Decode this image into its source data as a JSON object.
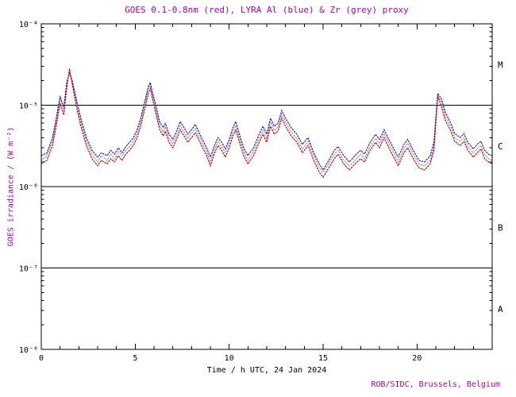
{
  "credit": "ROB/SIDC, Brussels, Belgium",
  "colors": {
    "accent_magenta": "#aa00aa",
    "axis_black": "#000000",
    "goes_red": "#cc0000",
    "lyra_al_blue": "#2020c0",
    "lyra_zr_grey": "#9a9a9a"
  },
  "chart_data": {
    "type": "line",
    "title": "GOES 0.1-0.8nm (red), LYRA Al (blue) & Zr (grey) proxy",
    "xlabel": "Time / h UTC, 24 Jan 2024",
    "ylabel": "GOES irradiance / (W m⁻²)",
    "xlim": [
      0,
      24
    ],
    "ylim_log10": [
      -8,
      -4
    ],
    "grid": false,
    "x_major_ticks": [
      0,
      5,
      10,
      15,
      20
    ],
    "y_ticks": [
      {
        "log10": -4,
        "label": "10⁻⁴"
      },
      {
        "log10": -5,
        "label": "10⁻⁵"
      },
      {
        "log10": -6,
        "label": "10⁻⁶"
      },
      {
        "log10": -7,
        "label": "10⁻⁷"
      },
      {
        "log10": -8,
        "label": "10⁻⁸"
      }
    ],
    "hlines_log10": [
      -5,
      -6,
      -7
    ],
    "flare_classes": [
      {
        "label": "M",
        "log10_center": -4.5
      },
      {
        "label": "C",
        "log10_center": -5.5
      },
      {
        "label": "B",
        "log10_center": -6.5
      },
      {
        "label": "A",
        "log10_center": -7.5
      }
    ],
    "x": [
      0,
      0.3,
      0.6,
      0.8,
      1.0,
      1.1,
      1.2,
      1.35,
      1.5,
      1.65,
      1.9,
      2.1,
      2.4,
      2.7,
      3.0,
      3.2,
      3.5,
      3.7,
      3.9,
      4.1,
      4.3,
      4.5,
      4.7,
      4.9,
      5.1,
      5.3,
      5.5,
      5.7,
      5.8,
      5.9,
      6.1,
      6.3,
      6.5,
      6.6,
      6.8,
      7.0,
      7.2,
      7.4,
      7.6,
      7.8,
      8.0,
      8.2,
      8.5,
      8.8,
      9.0,
      9.2,
      9.4,
      9.6,
      9.8,
      10.0,
      10.2,
      10.35,
      10.6,
      10.8,
      11.0,
      11.3,
      11.6,
      11.8,
      12.0,
      12.2,
      12.4,
      12.6,
      12.8,
      13.0,
      13.3,
      13.6,
      13.9,
      14.2,
      14.5,
      14.8,
      15.0,
      15.3,
      15.6,
      15.8,
      16.1,
      16.4,
      16.7,
      17.0,
      17.2,
      17.5,
      17.8,
      18.0,
      18.25,
      18.5,
      18.8,
      19.0,
      19.3,
      19.5,
      19.8,
      20.1,
      20.4,
      20.7,
      20.9,
      21.1,
      21.3,
      21.5,
      21.8,
      22.0,
      22.3,
      22.5,
      22.7,
      23.0,
      23.2,
      23.4,
      23.6,
      23.8,
      24.0
    ],
    "series": [
      {
        "id": "lyra-zr-proxy",
        "name": "LYRA Zr proxy (grey)",
        "color": "#9a9a9a",
        "values": [
          2.1e-06,
          2.4e-06,
          3.6e-06,
          6.3e-06,
          1.2e-05,
          1e-05,
          8.5e-06,
          1.7e-05,
          2.6e-05,
          1.9e-05,
          1e-05,
          6.3e-06,
          3.6e-06,
          2.5e-06,
          2e-06,
          2.4e-06,
          2.1e-06,
          2.5e-06,
          2.2e-06,
          2.7e-06,
          2.4e-06,
          2.8e-06,
          3.1e-06,
          3.6e-06,
          4.5e-06,
          6.3e-06,
          1e-05,
          1.6e-05,
          1.8e-05,
          1.4e-05,
          8.8e-06,
          5.6e-06,
          4.7e-06,
          5.4e-06,
          3.9e-06,
          3.4e-06,
          4.3e-06,
          5.6e-06,
          4.7e-06,
          3.9e-06,
          4.5e-06,
          5.2e-06,
          3.7e-06,
          2.7e-06,
          2e-06,
          2.8e-06,
          3.6e-06,
          3.1e-06,
          2.6e-06,
          3.4e-06,
          4.7e-06,
          5.6e-06,
          3.6e-06,
          2.6e-06,
          2.1e-06,
          2.7e-06,
          3.9e-06,
          4.9e-06,
          3.9e-06,
          6.2e-06,
          4.9e-06,
          5.4e-06,
          7.7e-06,
          6.2e-06,
          4.7e-06,
          3.9e-06,
          2.9e-06,
          3.6e-06,
          2.4e-06,
          1.7e-06,
          1.5e-06,
          1.9e-06,
          2.5e-06,
          2.8e-06,
          2.1e-06,
          1.8e-06,
          2.1e-06,
          2.5e-06,
          2.2e-06,
          3.1e-06,
          3.9e-06,
          3.4e-06,
          4.5e-06,
          3.4e-06,
          2.5e-06,
          2e-06,
          2.9e-06,
          3.4e-06,
          2.5e-06,
          1.9e-06,
          1.8e-06,
          2.1e-06,
          3.1e-06,
          1.3e-05,
          1.1e-05,
          7.4e-06,
          5.4e-06,
          4e-06,
          3.6e-06,
          4e-06,
          3.1e-06,
          2.6e-06,
          2.9e-06,
          3.2e-06,
          2.5e-06,
          2.2e-06,
          2.1e-06
        ]
      },
      {
        "id": "lyra-al-proxy",
        "name": "LYRA Al proxy (blue)",
        "color": "#2020c0",
        "values": [
          2.4e-06,
          2.6e-06,
          4e-06,
          7e-06,
          1.3e-05,
          1.1e-05,
          9.5e-06,
          1.9e-05,
          2.5e-05,
          2e-05,
          1.1e-05,
          7e-06,
          4e-06,
          2.8e-06,
          2.3e-06,
          2.6e-06,
          2.4e-06,
          2.8e-06,
          2.5e-06,
          3e-06,
          2.6e-06,
          3.1e-06,
          3.5e-06,
          4e-06,
          5e-06,
          7e-06,
          1.1e-05,
          1.7e-05,
          1.9e-05,
          1.5e-05,
          9.9e-06,
          6.3e-06,
          5.3e-06,
          6e-06,
          4.4e-06,
          3.8e-06,
          4.8e-06,
          6.3e-06,
          5.3e-06,
          4.4e-06,
          5e-06,
          5.8e-06,
          4.1e-06,
          3e-06,
          2.3e-06,
          3.1e-06,
          4e-06,
          3.5e-06,
          2.9e-06,
          3.8e-06,
          5.3e-06,
          6.3e-06,
          4e-06,
          2.9e-06,
          2.4e-06,
          3e-06,
          4.4e-06,
          5.5e-06,
          4.4e-06,
          6.9e-06,
          5.5e-06,
          6e-06,
          8.6e-06,
          6.9e-06,
          5.3e-06,
          4.4e-06,
          3.3e-06,
          4e-06,
          2.6e-06,
          1.9e-06,
          1.6e-06,
          2.1e-06,
          2.8e-06,
          3.1e-06,
          2.4e-06,
          2e-06,
          2.4e-06,
          2.8e-06,
          2.5e-06,
          3.5e-06,
          4.4e-06,
          3.8e-06,
          5e-06,
          3.8e-06,
          2.8e-06,
          2.3e-06,
          3.3e-06,
          3.8e-06,
          2.8e-06,
          2.1e-06,
          2e-06,
          2.4e-06,
          3.5e-06,
          1.4e-05,
          1.2e-05,
          8.3e-06,
          6e-06,
          4.5e-06,
          4e-06,
          4.5e-06,
          3.5e-06,
          2.9e-06,
          3.3e-06,
          3.6e-06,
          2.8e-06,
          2.5e-06,
          2.4e-06
        ]
      },
      {
        "id": "goes-xray",
        "name": "GOES 0.1-0.8nm (red)",
        "color": "#cc0000",
        "values": [
          1.9e-06,
          2.1e-06,
          3.2e-06,
          5.6e-06,
          1.05e-05,
          8.9e-06,
          7.6e-06,
          1.6e-05,
          2.8e-05,
          1.8e-05,
          8.9e-06,
          5.6e-06,
          3.2e-06,
          2.2e-06,
          1.8e-06,
          2.1e-06,
          1.9e-06,
          2.2e-06,
          2e-06,
          2.4e-06,
          2.1e-06,
          2.5e-06,
          2.8e-06,
          3.2e-06,
          4e-06,
          5.6e-06,
          8.9e-06,
          1.4e-05,
          1.6e-05,
          1.26e-05,
          7.9e-06,
          5e-06,
          4.2e-06,
          4.8e-06,
          3.5e-06,
          3e-06,
          3.8e-06,
          5e-06,
          4.2e-06,
          3.5e-06,
          4e-06,
          4.6e-06,
          3.3e-06,
          2.4e-06,
          1.8e-06,
          2.5e-06,
          3.2e-06,
          2.8e-06,
          2.3e-06,
          3e-06,
          4.2e-06,
          5e-06,
          3.2e-06,
          2.3e-06,
          1.9e-06,
          2.4e-06,
          3.5e-06,
          4.4e-06,
          3.5e-06,
          5.5e-06,
          4.4e-06,
          4.8e-06,
          6.9e-06,
          5.5e-06,
          4.2e-06,
          3.5e-06,
          2.6e-06,
          3.2e-06,
          2.1e-06,
          1.5e-06,
          1.3e-06,
          1.7e-06,
          2.2e-06,
          2.5e-06,
          1.9e-06,
          1.6e-06,
          1.9e-06,
          2.2e-06,
          2e-06,
          2.8e-06,
          3.5e-06,
          3e-06,
          4e-06,
          3e-06,
          2.2e-06,
          1.8e-06,
          2.6e-06,
          3e-06,
          2.2e-06,
          1.7e-06,
          1.6e-06,
          1.9e-06,
          2.8e-06,
          1.3e-05,
          9.5e-06,
          6.6e-06,
          4.8e-06,
          3.6e-06,
          3.2e-06,
          3.6e-06,
          2.8e-06,
          2.3e-06,
          2.6e-06,
          2.9e-06,
          2.2e-06,
          2e-06,
          1.9e-06
        ]
      }
    ]
  }
}
